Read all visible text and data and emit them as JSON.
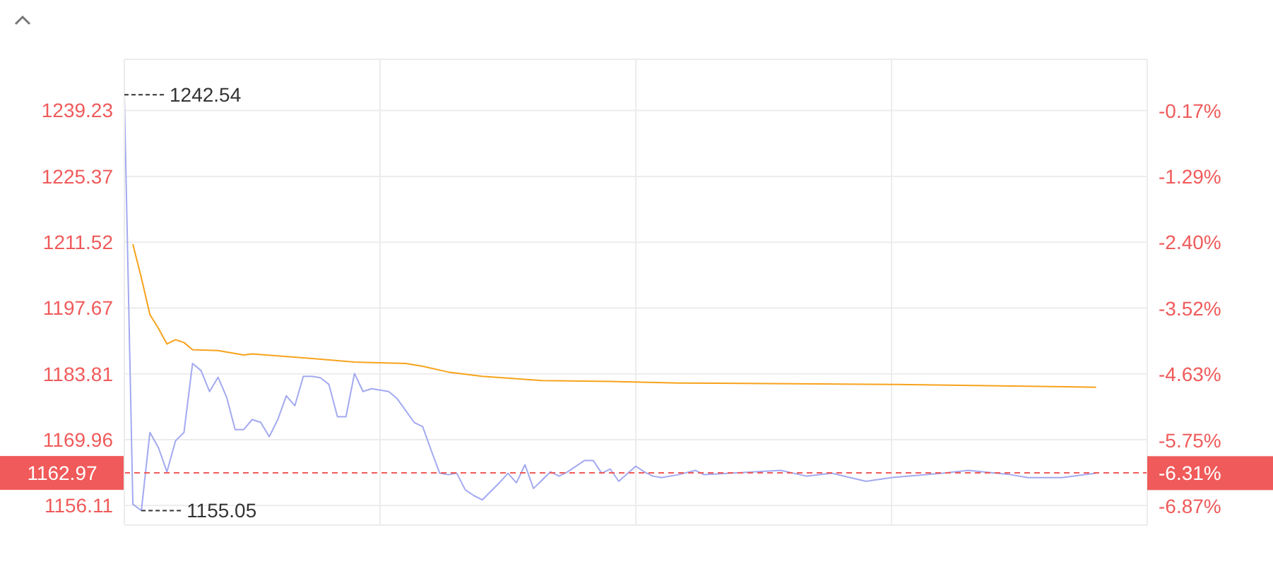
{
  "chart_data": {
    "type": "line",
    "categories": [
      null,
      null,
      null,
      null,
      null,
      null,
      null,
      null,
      null,
      null,
      null,
      null,
      null,
      null,
      null,
      null,
      null,
      null,
      null,
      null,
      null,
      null,
      null,
      null,
      null,
      null,
      null,
      null,
      null,
      null,
      null,
      null,
      null,
      null,
      null,
      null,
      null,
      null,
      null,
      null,
      null,
      null,
      null,
      null,
      null,
      null,
      null,
      null,
      null,
      null,
      null,
      null,
      null,
      null,
      null,
      null,
      null,
      null,
      null,
      null,
      null,
      null,
      null,
      null,
      null,
      null,
      null,
      null,
      null,
      null,
      null,
      null,
      null,
      null,
      null,
      null,
      null,
      null,
      null,
      null,
      null,
      null,
      null,
      null,
      null,
      null,
      null,
      null,
      null,
      null,
      null,
      null,
      null,
      null,
      null,
      null,
      null,
      null,
      null,
      null,
      null,
      null,
      null,
      null,
      null,
      null,
      null,
      null,
      null,
      null,
      null,
      null,
      null,
      null,
      null,
      null,
      null,
      null,
      null,
      null,
      null
    ],
    "ylim": [
      1152,
      1250
    ],
    "yticks": [
      1156.11,
      1169.96,
      1183.81,
      1197.67,
      1211.52,
      1225.37,
      1239.23
    ],
    "y2lim": [
      -7.19,
      0.7
    ],
    "y2ticks": [
      {
        "value": -6.87,
        "label": "-6.87%"
      },
      {
        "value": -6.31,
        "label": "-6.31%"
      },
      {
        "value": -5.75,
        "label": "-5.75%"
      },
      {
        "value": -4.63,
        "label": "-4.63%"
      },
      {
        "value": -3.52,
        "label": "-3.52%"
      },
      {
        "value": -2.4,
        "label": "-2.40%"
      },
      {
        "value": -1.29,
        "label": "-1.29%"
      },
      {
        "value": -0.17,
        "label": "-0.17%"
      }
    ],
    "grid": true,
    "series": [
      {
        "color": "#a3a9f0",
        "values": [
          1242.54,
          1156.4,
          1155.05,
          1171.5,
          1168.3,
          1163.2,
          1169.7,
          1171.5,
          1186.0,
          1184.5,
          1180.1,
          1183.1,
          1178.9,
          1172.1,
          1172.1,
          1174.2,
          1173.6,
          1170.6,
          1174.2,
          1179.2,
          1177.1,
          1183.3,
          1183.3,
          1183.0,
          1181.6,
          1174.8,
          1174.8,
          1183.9,
          1180.1,
          1180.7,
          null,
          1180.1,
          1178.6,
          null,
          1173.6,
          1172.7,
          1167.7,
          1162.9,
          1162.6,
          1162.9,
          1159.4,
          1158.2,
          1157.3,
          null,
          1160.9,
          1162.9,
          1160.9,
          1164.7,
          1159.7,
          null,
          1163.2,
          1162.3,
          1163.2,
          null,
          1165.6,
          1165.6,
          1162.9,
          1163.8,
          1161.2,
          null,
          1164.4,
          1163.2,
          1162.3,
          1162.0,
          null,
          1162.6,
          null,
          1163.5,
          1162.6,
          null,
          null,
          null,
          null,
          null,
          null,
          null,
          null,
          1163.5,
          null,
          null,
          1162.3,
          null,
          null,
          1162.9,
          null,
          null,
          null,
          1161.2,
          null,
          null,
          1162.0,
          null,
          null,
          null,
          null,
          null,
          1162.9,
          null,
          null,
          1163.5,
          null,
          null,
          null,
          null,
          1162.6,
          null,
          1162.0,
          null,
          null,
          null,
          1162.0,
          null,
          null,
          null,
          1162.9,
          null,
          null,
          null,
          null,
          null,
          null
        ]
      },
      {
        "color": "#f7a21b",
        "values": [
          null,
          1211.1,
          1204.0,
          1196.3,
          1193.4,
          1190.1,
          1191.0,
          1190.4,
          1188.9,
          null,
          null,
          1188.7,
          null,
          null,
          1187.8,
          1188.0,
          null,
          null,
          null,
          null,
          null,
          1187.2,
          null,
          null,
          null,
          null,
          null,
          1186.3,
          null,
          null,
          null,
          null,
          null,
          1186.0,
          null,
          1185.4,
          null,
          null,
          1184.2,
          null,
          null,
          null,
          1183.3,
          null,
          null,
          null,
          null,
          null,
          null,
          1182.4,
          null,
          null,
          null,
          null,
          null,
          null,
          null,
          1182.2,
          null,
          null,
          null,
          null,
          null,
          null,
          null,
          1181.9,
          null,
          null,
          null,
          null,
          null,
          null,
          null,
          null,
          null,
          null,
          null,
          null,
          null,
          null,
          null,
          null,
          null,
          null,
          null,
          null,
          null,
          null,
          null,
          null,
          1181.6,
          null,
          null,
          null,
          null,
          null,
          null,
          null,
          null,
          null,
          null,
          null,
          null,
          null,
          null,
          null,
          null,
          null,
          null,
          null,
          null,
          null,
          null,
          null,
          1181.0,
          null,
          null,
          null,
          null,
          null,
          null
        ]
      }
    ],
    "ref_lines": [
      {
        "axis": "y",
        "value": 1162.97,
        "label": "1162.97",
        "color": "#f05a5a",
        "line_style": "dashed"
      }
    ],
    "annotations": [
      "1242.54",
      "1155.05"
    ]
  }
}
